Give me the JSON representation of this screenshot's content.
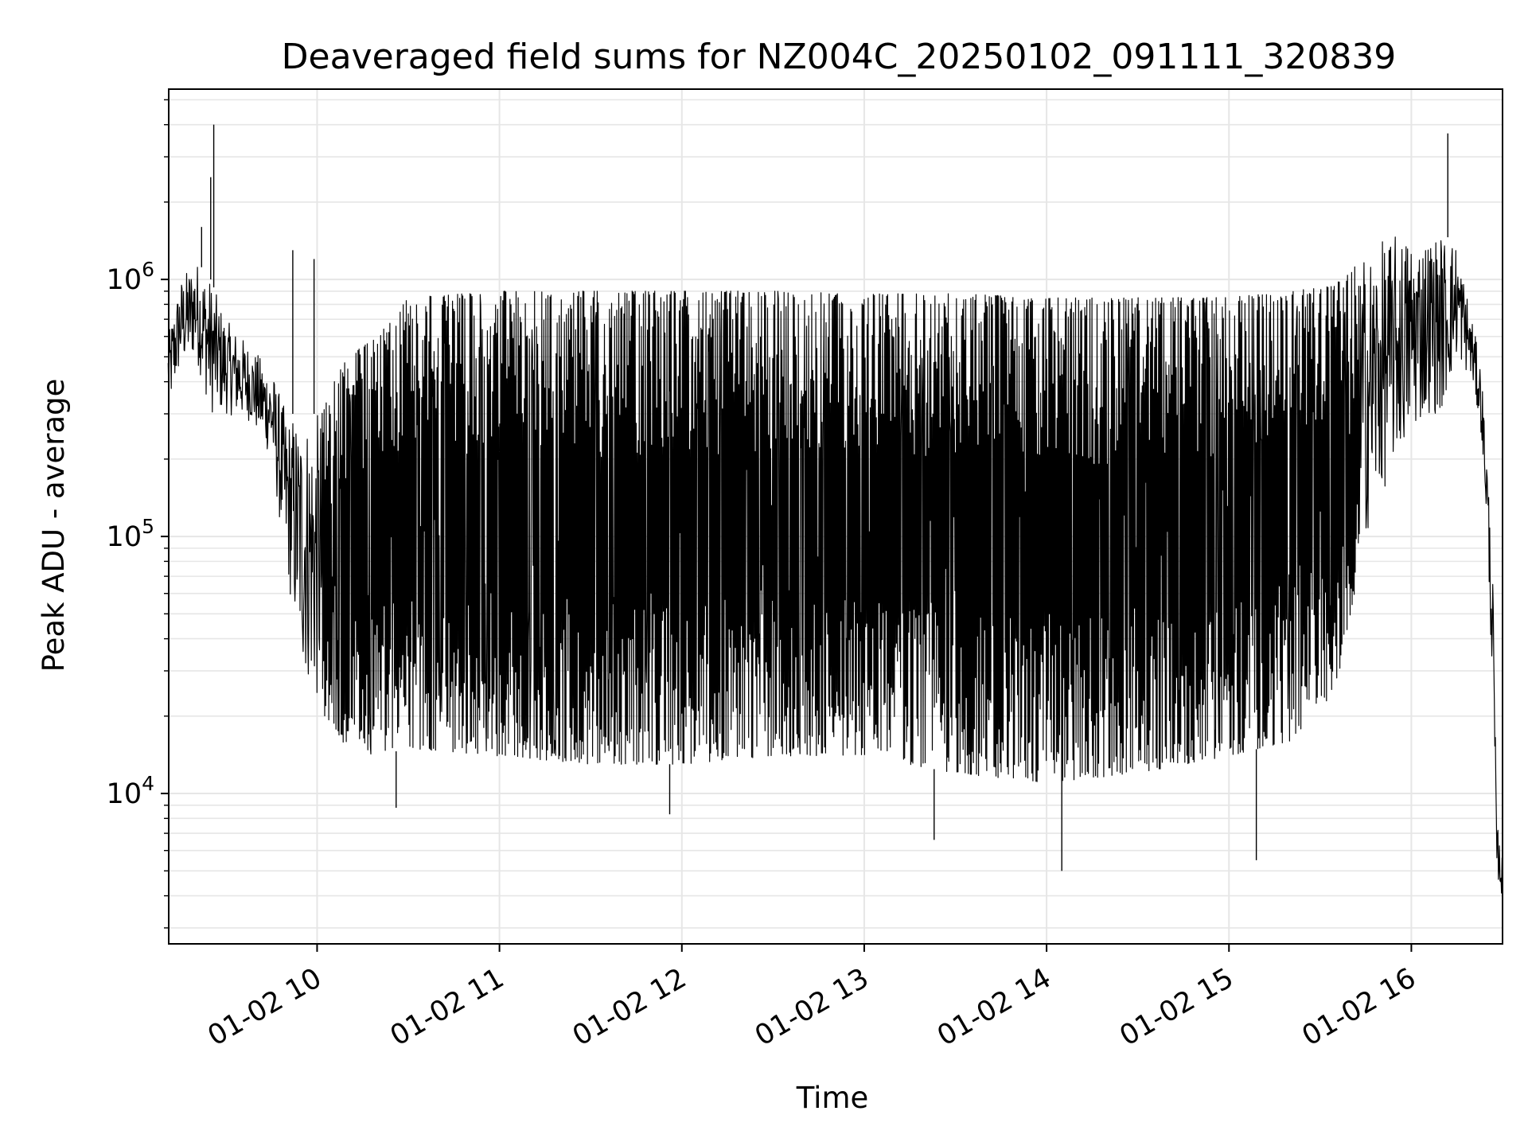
{
  "chart_data": {
    "type": "line",
    "title": "Deaveraged field sums for NZ004C_20250102_091111_320839",
    "xlabel": "Time",
    "ylabel": "Peak ADU - average",
    "yscale": "log",
    "ylim": [
      2600,
      5500000
    ],
    "xlim": [
      "2025-01-02 09:11:11",
      "2025-01-02 16:30:00"
    ],
    "grid": true,
    "line_color": "#000000",
    "grid_color": "#e6e6e6",
    "x_ticks": [
      {
        "t": "2025-01-02 10:00",
        "label": "01-02 10"
      },
      {
        "t": "2025-01-02 11:00",
        "label": "01-02 11"
      },
      {
        "t": "2025-01-02 12:00",
        "label": "01-02 12"
      },
      {
        "t": "2025-01-02 13:00",
        "label": "01-02 13"
      },
      {
        "t": "2025-01-02 14:00",
        "label": "01-02 14"
      },
      {
        "t": "2025-01-02 15:00",
        "label": "01-02 15"
      },
      {
        "t": "2025-01-02 16:00",
        "label": "01-02 16"
      }
    ],
    "y_ticks": [
      {
        "value": 10000,
        "base": "10",
        "exp": "4"
      },
      {
        "value": 100000,
        "base": "10",
        "exp": "5"
      },
      {
        "value": 1000000,
        "base": "10",
        "exp": "6"
      }
    ],
    "series": [
      {
        "envelope": [
          {
            "t": "2025-01-02 09:11",
            "low": 300000,
            "high": 600000
          },
          {
            "t": "2025-01-02 09:15",
            "low": 450000,
            "high": 1000000
          },
          {
            "t": "2025-01-02 09:20",
            "low": 500000,
            "high": 1200000
          },
          {
            "t": "2025-01-02 09:25",
            "low": 300000,
            "high": 1000000
          },
          {
            "t": "2025-01-02 09:30",
            "low": 300000,
            "high": 700000
          },
          {
            "t": "2025-01-02 09:38",
            "low": 280000,
            "high": 550000
          },
          {
            "t": "2025-01-02 09:45",
            "low": 200000,
            "high": 450000
          },
          {
            "t": "2025-01-02 09:50",
            "low": 70000,
            "high": 300000
          },
          {
            "t": "2025-01-02 09:55",
            "low": 30000,
            "high": 300000
          },
          {
            "t": "2025-01-02 10:00",
            "low": 22000,
            "high": 300000
          },
          {
            "t": "2025-01-02 10:10",
            "low": 15000,
            "high": 500000
          },
          {
            "t": "2025-01-02 10:20",
            "low": 14000,
            "high": 600000
          },
          {
            "t": "2025-01-02 10:30",
            "low": 15000,
            "high": 850000
          },
          {
            "t": "2025-01-02 11:00",
            "low": 14000,
            "high": 900000
          },
          {
            "t": "2025-01-02 11:30",
            "low": 13000,
            "high": 900000
          },
          {
            "t": "2025-01-02 12:00",
            "low": 13000,
            "high": 900000
          },
          {
            "t": "2025-01-02 12:30",
            "low": 14000,
            "high": 900000
          },
          {
            "t": "2025-01-02 13:00",
            "low": 14000,
            "high": 880000
          },
          {
            "t": "2025-01-02 13:30",
            "low": 12000,
            "high": 880000
          },
          {
            "t": "2025-01-02 14:00",
            "low": 11000,
            "high": 850000
          },
          {
            "t": "2025-01-02 14:30",
            "low": 12000,
            "high": 850000
          },
          {
            "t": "2025-01-02 15:00",
            "low": 14000,
            "high": 850000
          },
          {
            "t": "2025-01-02 15:20",
            "low": 16000,
            "high": 900000
          },
          {
            "t": "2025-01-02 15:35",
            "low": 25000,
            "high": 950000
          },
          {
            "t": "2025-01-02 15:45",
            "low": 100000,
            "high": 1300000
          },
          {
            "t": "2025-01-02 15:55",
            "low": 200000,
            "high": 1500000
          },
          {
            "t": "2025-01-02 16:05",
            "low": 300000,
            "high": 1500000
          },
          {
            "t": "2025-01-02 16:10",
            "low": 300000,
            "high": 1500000
          },
          {
            "t": "2025-01-02 16:15",
            "low": 500000,
            "high": 1400000
          },
          {
            "t": "2025-01-02 16:20",
            "low": 400000,
            "high": 700000
          },
          {
            "t": "2025-01-02 16:23",
            "low": 250000,
            "high": 450000
          },
          {
            "t": "2025-01-02 16:25",
            "low": 100000,
            "high": 200000
          },
          {
            "t": "2025-01-02 16:27",
            "low": 20000,
            "high": 60000
          },
          {
            "t": "2025-01-02 16:28",
            "low": 5000,
            "high": 8000
          },
          {
            "t": "2025-01-02 16:30",
            "low": 3800,
            "high": 5500
          }
        ],
        "spikes": [
          {
            "t": "2025-01-02 09:22",
            "value": 1600000
          },
          {
            "t": "2025-01-02 09:25",
            "value": 2500000
          },
          {
            "t": "2025-01-02 09:26",
            "value": 4000000
          },
          {
            "t": "2025-01-02 09:52",
            "value": 1300000
          },
          {
            "t": "2025-01-02 09:59",
            "value": 1200000
          },
          {
            "t": "2025-01-02 10:26",
            "value": 8800
          },
          {
            "t": "2025-01-02 11:56",
            "value": 8300
          },
          {
            "t": "2025-01-02 13:23",
            "value": 6600
          },
          {
            "t": "2025-01-02 14:05",
            "value": 5000
          },
          {
            "t": "2025-01-02 15:09",
            "value": 5500
          },
          {
            "t": "2025-01-02 16:12",
            "value": 3700000
          }
        ]
      }
    ]
  }
}
